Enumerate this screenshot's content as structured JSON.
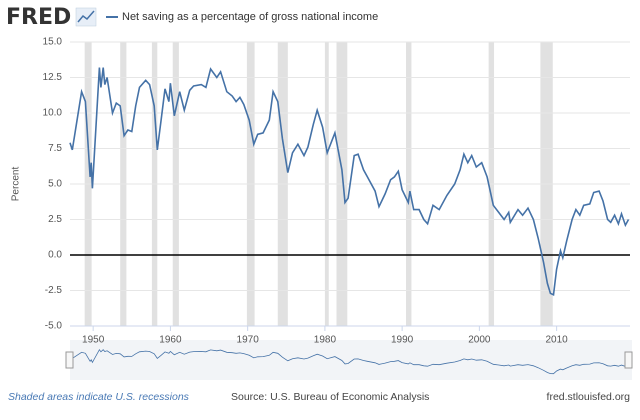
{
  "logo": "FRED",
  "chart_data": {
    "type": "line",
    "y_label": "Percent",
    "xlim": [
      1947,
      2019.5
    ],
    "ylim": [
      -5,
      15
    ],
    "xticks": [
      1950,
      1960,
      1970,
      1980,
      1990,
      2000,
      2010
    ],
    "yticks": [
      {
        "value": -5,
        "label": "-5.0"
      },
      -2.5,
      {
        "value": 0,
        "label": "0.0"
      },
      2.5,
      {
        "value": 5,
        "label": "5.0"
      },
      7.5,
      {
        "value": 10,
        "label": "10.0"
      },
      12.5,
      {
        "value": 15,
        "label": "15.0"
      }
    ],
    "grid": true,
    "recessions": [
      [
        1948.9,
        1949.8
      ],
      [
        1953.5,
        1954.3
      ],
      [
        1957.6,
        1958.3
      ],
      [
        1960.3,
        1961.1
      ],
      [
        1969.9,
        1970.9
      ],
      [
        1973.9,
        1975.2
      ],
      [
        1980.0,
        1980.5
      ],
      [
        1981.5,
        1982.9
      ],
      [
        1990.5,
        1991.2
      ],
      [
        2001.2,
        2001.9
      ],
      [
        2007.9,
        2009.5
      ]
    ],
    "recession_note": "Shaded areas indicate U.S. recessions",
    "source": "Source: U.S. Bureau of Economic Analysis",
    "site": "fred.stlouisfed.org",
    "x": [
      1947,
      1947.3,
      1948.5,
      1949,
      1949.6,
      1949.75,
      1949.9,
      1950.8,
      1951,
      1951.3,
      1951.5,
      1951.8,
      1952.5,
      1953,
      1953.5,
      1954,
      1954.5,
      1955,
      1955.5,
      1956,
      1956.8,
      1957.3,
      1957.9,
      1958.3,
      1958.8,
      1959.3,
      1959.8,
      1960,
      1960.5,
      1961.2,
      1961.8,
      1962.5,
      1963,
      1964,
      1964.6,
      1965.2,
      1966,
      1966.5,
      1967.3,
      1968,
      1968.5,
      1969,
      1969.5,
      1970.2,
      1970.8,
      1971.3,
      1972,
      1972.8,
      1973.3,
      1973.9,
      1974.5,
      1975.2,
      1975.8,
      1976.5,
      1977.3,
      1977.8,
      1978.5,
      1979,
      1979.7,
      1980.3,
      1981.3,
      1982.2,
      1982.6,
      1983,
      1983.8,
      1984.3,
      1985,
      1985.5,
      1986.5,
      1987,
      1987.8,
      1988.5,
      1989,
      1989.5,
      1990,
      1990.8,
      1991,
      1991.5,
      1992.2,
      1992.8,
      1993.3,
      1994,
      1994.8,
      1995.8,
      1996.8,
      1997.5,
      1998,
      1998.5,
      1999,
      1999.6,
      2000.3,
      2001,
      2001.8,
      2002.5,
      2003.2,
      2003.8,
      2004,
      2005,
      2005.6,
      2006.3,
      2007,
      2007.6,
      2008.3,
      2008.8,
      2009.2,
      2009.6,
      2010,
      2010.5,
      2010.8,
      2011.3,
      2012,
      2012.5,
      2013,
      2013.5,
      2014.3,
      2014.8,
      2015.5,
      2016,
      2016.6,
      2017,
      2017.5,
      2018,
      2018.4,
      2018.9,
      2019.3
    ],
    "series": [
      {
        "name": "Net saving as a percentage of gross national income",
        "color": "#4572a7",
        "values": [
          7.9,
          7.4,
          11.5,
          10.8,
          5.5,
          6.5,
          4.7,
          13.2,
          11.8,
          13.2,
          12.0,
          12.5,
          10.0,
          10.7,
          10.5,
          8.4,
          8.8,
          8.7,
          10.5,
          11.8,
          12.3,
          12.0,
          10.5,
          7.4,
          9.5,
          11.7,
          10.8,
          12.1,
          9.8,
          11.5,
          10.2,
          11.6,
          11.9,
          12.0,
          11.8,
          13.1,
          12.5,
          12.9,
          11.5,
          11.2,
          10.8,
          11.1,
          10.6,
          9.5,
          7.8,
          8.5,
          8.6,
          9.5,
          11.5,
          10.8,
          8.2,
          5.8,
          7.2,
          7.8,
          7.0,
          7.6,
          9.2,
          10.2,
          9.0,
          7.2,
          8.6,
          6.0,
          3.7,
          4.0,
          7.0,
          7.1,
          6.0,
          5.5,
          4.5,
          3.4,
          4.3,
          5.3,
          5.5,
          5.9,
          4.6,
          3.7,
          4.5,
          3.2,
          3.2,
          2.5,
          2.2,
          3.5,
          3.2,
          4.2,
          5.0,
          6.0,
          7.1,
          6.5,
          7.0,
          6.2,
          6.5,
          5.5,
          3.5,
          3.0,
          2.5,
          3.0,
          2.3,
          3.2,
          2.8,
          3.3,
          2.5,
          1.2,
          -0.5,
          -2.0,
          -2.7,
          -2.8,
          -1.0,
          0.3,
          -0.2,
          1.0,
          2.5,
          3.2,
          2.8,
          3.5,
          3.6,
          4.4,
          4.5,
          3.8,
          2.5,
          2.3,
          2.8,
          2.2,
          2.9,
          2.1,
          2.5
        ]
      }
    ]
  }
}
